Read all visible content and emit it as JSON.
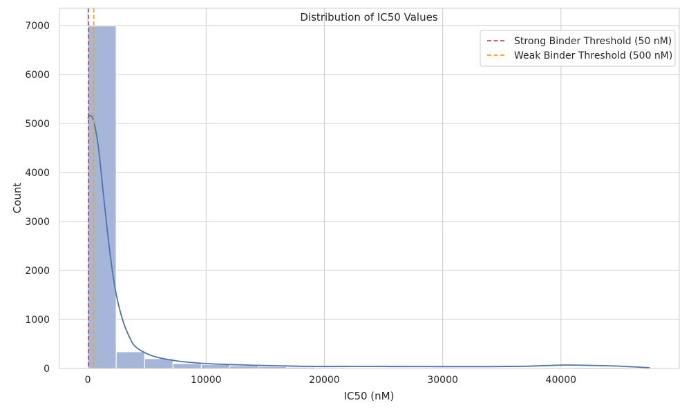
{
  "chart_data": {
    "type": "bar",
    "title": "Distribution of IC50 Values",
    "xlabel": "IC50 (nM)",
    "ylabel": "Count",
    "xlim": [
      -2400,
      50000
    ],
    "ylim": [
      0,
      7350
    ],
    "xticks": [
      0,
      10000,
      20000,
      30000,
      40000
    ],
    "yticks": [
      0,
      1000,
      2000,
      3000,
      4000,
      5000,
      6000,
      7000
    ],
    "grid": true,
    "legend_position": "top-right",
    "bin_edges": [
      0,
      2400,
      4800,
      7200,
      9600,
      12000,
      14400,
      16800,
      19200,
      21600,
      24000,
      26400,
      28800,
      31200,
      33600,
      36000,
      38400,
      40800,
      43200,
      45600,
      48000
    ],
    "counts": [
      6990,
      340,
      200,
      100,
      80,
      55,
      40,
      25,
      15,
      12,
      12,
      10,
      8,
      8,
      8,
      10,
      12,
      20,
      20,
      15
    ],
    "kde": {
      "x": [
        0,
        200,
        500,
        900,
        1300,
        1700,
        2100,
        2500,
        3000,
        3500,
        4000,
        5000,
        6000,
        7000,
        8000,
        10000,
        12000,
        14000,
        16000,
        18000,
        20000,
        23000,
        26000,
        30000,
        34000,
        37000,
        39000,
        40500,
        42000,
        44000,
        45500,
        47500
      ],
      "y": [
        5100,
        5160,
        5050,
        4500,
        3600,
        2700,
        1950,
        1400,
        950,
        650,
        450,
        300,
        220,
        175,
        140,
        100,
        80,
        65,
        55,
        45,
        40,
        42,
        40,
        38,
        38,
        45,
        60,
        70,
        65,
        55,
        40,
        15
      ]
    },
    "series": [
      {
        "name": "Strong Binder Threshold (50 nM)",
        "x": 50,
        "color": "#c44e52"
      },
      {
        "name": "Weak Binder Threshold (500 nM)",
        "x": 500,
        "color": "#ffa500"
      }
    ],
    "bar_color": "#a5b6d8",
    "kde_color": "#4c72b0"
  }
}
